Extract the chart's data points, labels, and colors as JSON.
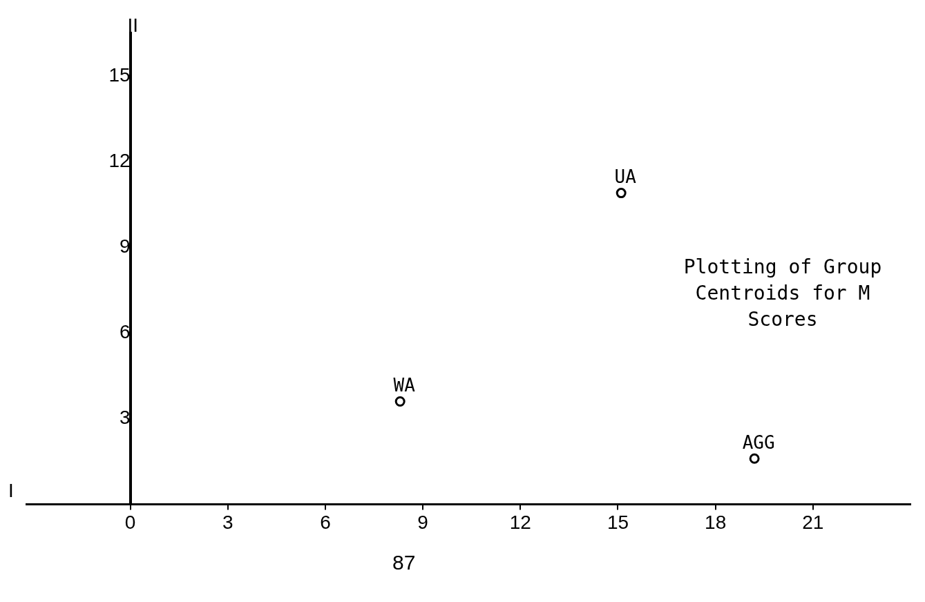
{
  "chart_data": {
    "type": "scatter",
    "title": "Plotting of Group Centroids for M Scores",
    "xlabel": "I",
    "ylabel": "II",
    "marker": "circle",
    "grid": false,
    "series": [
      {
        "name": "UA",
        "color": "#000000",
        "x": [
          15.1
        ],
        "values": [
          10.9
        ]
      },
      {
        "name": "WA",
        "color": "#000000",
        "x": [
          8.3
        ],
        "values": [
          3.6
        ]
      },
      {
        "name": "AGG",
        "color": "#000000",
        "x": [
          19.2
        ],
        "values": [
          1.6
        ]
      }
    ],
    "xlim": [
      -3.2,
      24
    ],
    "ylim": [
      0,
      16.5
    ],
    "xticks": [
      0,
      3,
      6,
      9,
      12,
      15,
      18,
      21
    ],
    "yticks": [
      3,
      6,
      9,
      12,
      15
    ],
    "annotations": [
      "87"
    ]
  }
}
